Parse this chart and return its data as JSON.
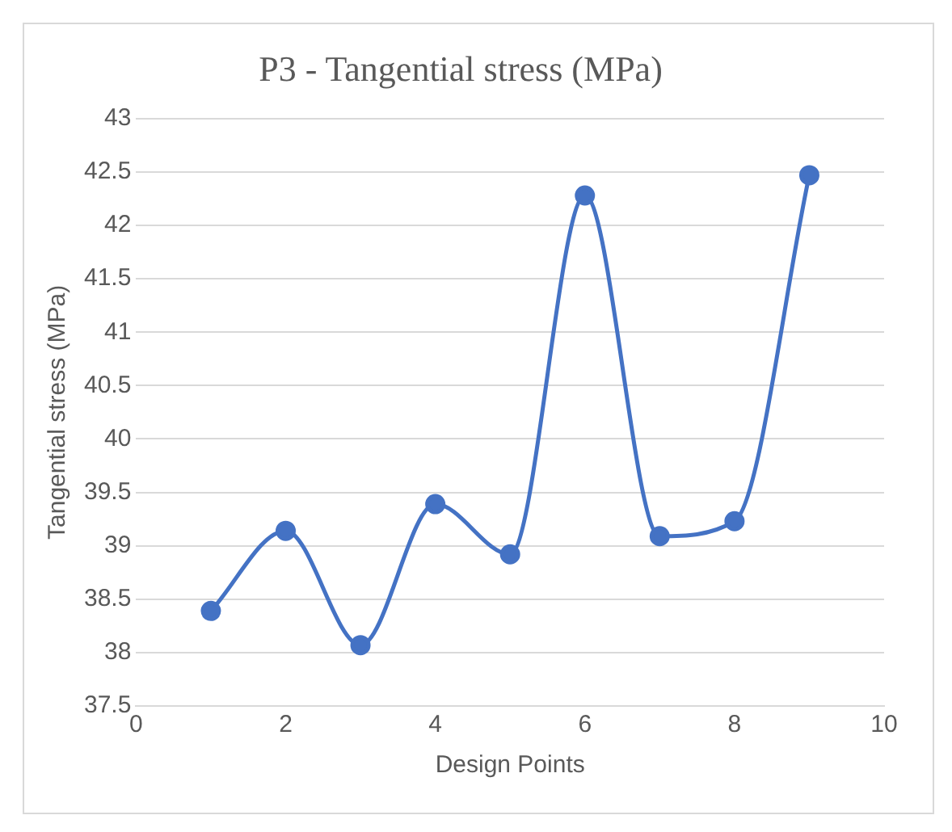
{
  "chart_data": {
    "type": "line",
    "title": "P3 - Tangential stress (MPa)",
    "xlabel": "Design Points",
    "ylabel": "Tangential stress (MPa)",
    "x": [
      1,
      2,
      3,
      4,
      5,
      6,
      7,
      8,
      9
    ],
    "series": [
      {
        "color": "#4472c4",
        "values": [
          38.39,
          39.14,
          38.07,
          39.39,
          38.92,
          42.28,
          39.09,
          39.23,
          42.47
        ]
      }
    ],
    "xlim": [
      0,
      10
    ],
    "xticks": [
      0,
      2,
      4,
      6,
      8,
      10
    ],
    "ylim": [
      37.5,
      43
    ],
    "yticks": [
      37.5,
      38,
      38.5,
      39,
      39.5,
      40,
      40.5,
      41,
      41.5,
      42,
      42.5,
      43
    ],
    "grid": "y",
    "legend": false,
    "marker": "circle",
    "line_style": "solid"
  }
}
